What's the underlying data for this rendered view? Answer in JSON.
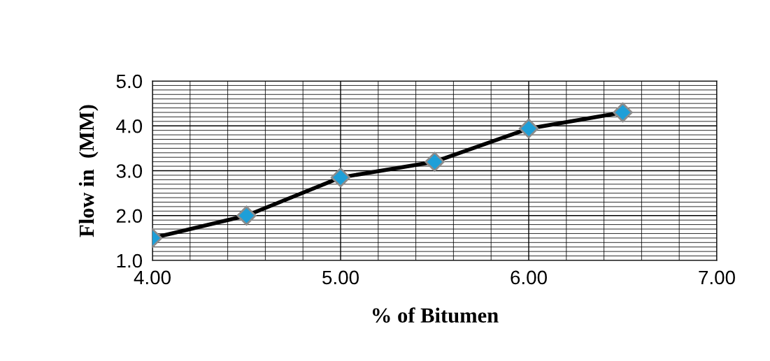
{
  "chart_data": {
    "type": "line",
    "xlabel": "% of Bitumen",
    "ylabel": "Flow in  (MM)",
    "x": [
      4.0,
      4.5,
      5.0,
      5.5,
      6.0,
      6.5
    ],
    "series": [
      {
        "color": "#000000",
        "values": [
          1.5,
          2.0,
          2.85,
          3.2,
          3.94,
          4.3
        ]
      }
    ],
    "marker": "diamond",
    "line_style": "solid",
    "xlim": [
      4.0,
      7.0
    ],
    "xticks": [
      {
        "value": 4,
        "label": "4.00"
      },
      {
        "value": 5,
        "label": "5.00"
      },
      {
        "value": 6,
        "label": "6.00"
      },
      {
        "value": 7,
        "label": "7.00"
      }
    ],
    "ylim": [
      1.0,
      5.0
    ],
    "yticks": [
      {
        "value": 1,
        "label": "1.0"
      },
      {
        "value": 2,
        "label": "2.0"
      },
      {
        "value": 3,
        "label": "3.0"
      },
      {
        "value": 4,
        "label": "4.0"
      },
      {
        "value": 5,
        "label": "5.0"
      }
    ],
    "grid": true
  }
}
